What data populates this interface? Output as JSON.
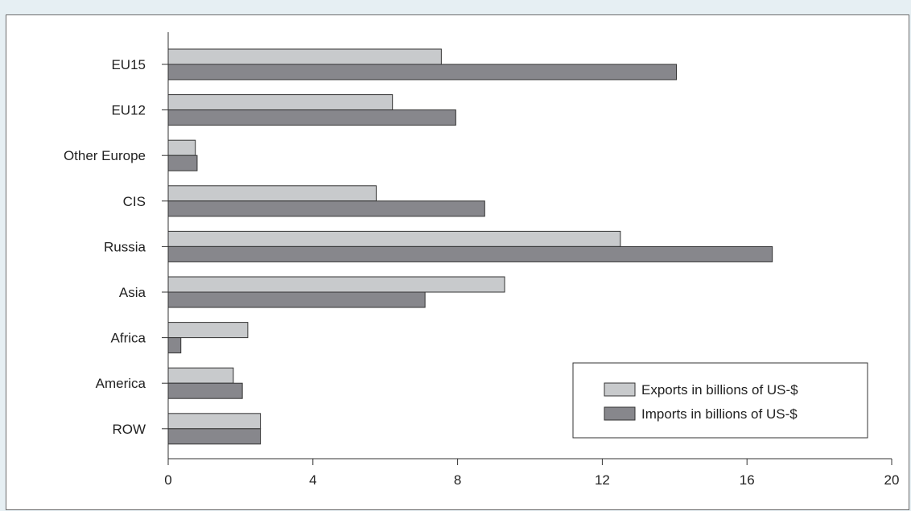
{
  "chart_data": {
    "type": "bar",
    "orientation": "horizontal",
    "title": "",
    "categories": [
      "EU15",
      "EU12",
      "Other Europe",
      "CIS",
      "Russia",
      "Asia",
      "Africa",
      "America",
      "ROW"
    ],
    "series": [
      {
        "name": "Exports in billions of US-$",
        "values": [
          7.55,
          6.2,
          0.75,
          5.75,
          12.5,
          9.3,
          2.2,
          1.8,
          2.55
        ],
        "color": "#c8cacc"
      },
      {
        "name": "Imports in billions of US-$",
        "values": [
          14.05,
          7.95,
          0.8,
          8.75,
          16.7,
          7.1,
          0.35,
          2.05,
          2.55
        ],
        "color": "#87878c"
      }
    ],
    "xlim": [
      0,
      20
    ],
    "xticks": [
      "0",
      "4",
      "8",
      "12",
      "16",
      "20"
    ],
    "legend_position": "bottom-right",
    "grid": false
  }
}
